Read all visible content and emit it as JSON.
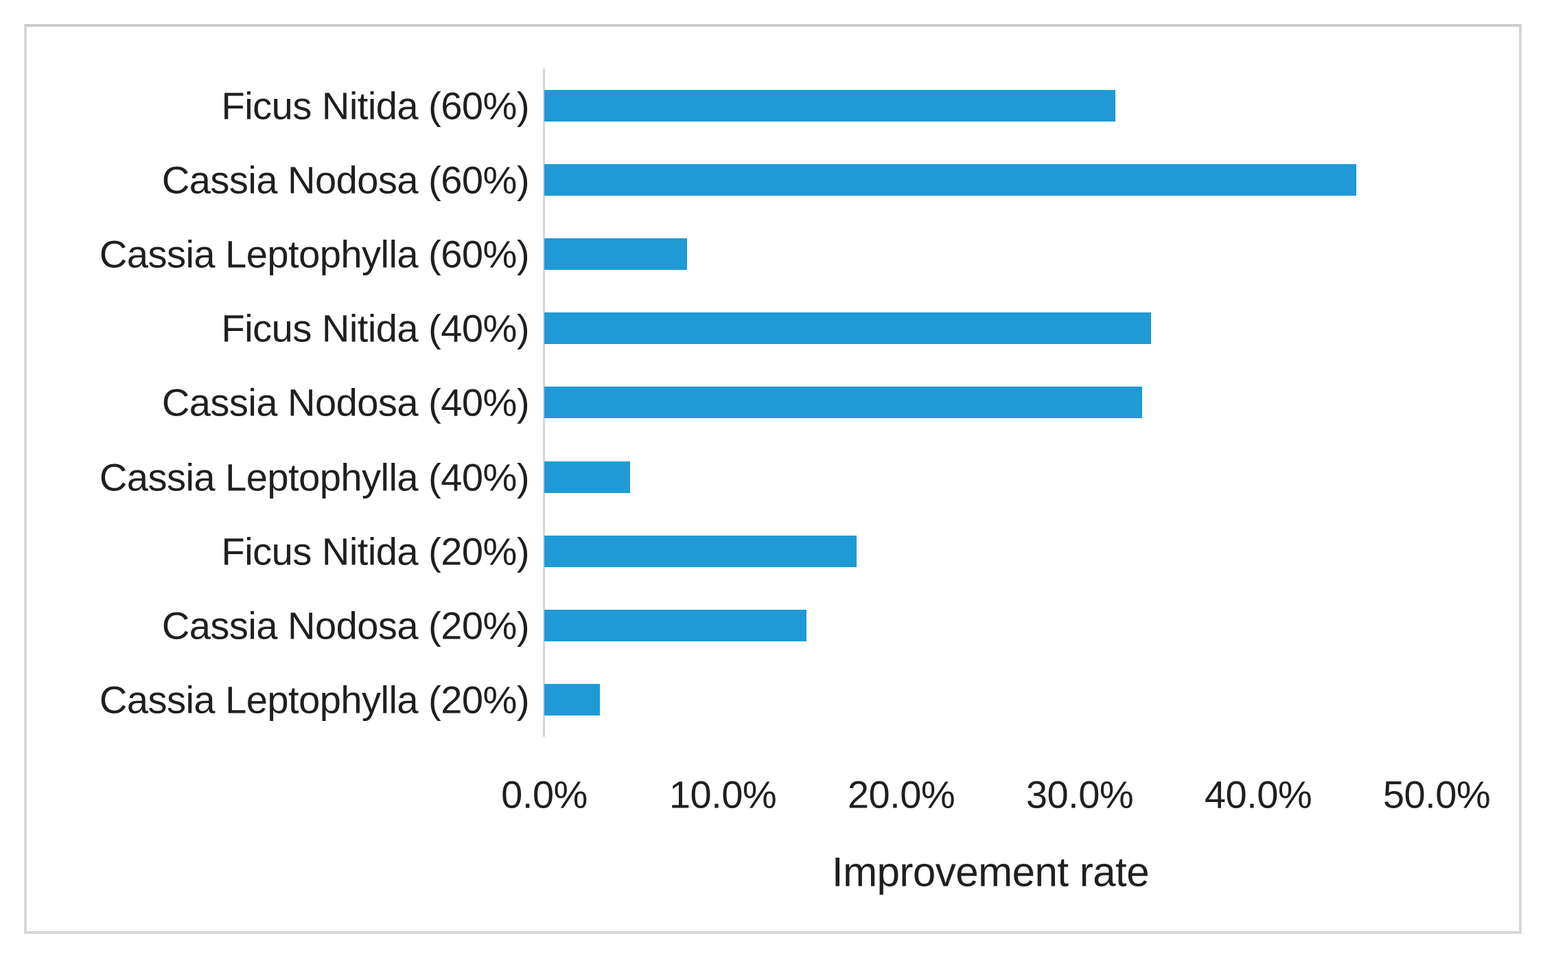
{
  "chart_data": {
    "type": "bar",
    "orientation": "horizontal",
    "title": "",
    "xlabel": "Improvement rate",
    "ylabel": "",
    "categories": [
      "Ficus Nitida (60%)",
      "Cassia Nodosa (60%)",
      "Cassia Leptophylla (60%)",
      "Ficus Nitida (40%)",
      "Cassia Nodosa (40%)",
      "Cassia Leptophylla (40%)",
      "Ficus Nitida (20%)",
      "Cassia Nodosa (20%)",
      "Cassia Leptophylla (20%)"
    ],
    "values": [
      32.0,
      45.5,
      8.0,
      34.0,
      33.5,
      4.8,
      17.5,
      14.7,
      3.1
    ],
    "value_unit": "%",
    "x_ticks": [
      "0.0%",
      "10.0%",
      "20.0%",
      "30.0%",
      "40.0%",
      "50.0%"
    ],
    "x_tick_values": [
      0,
      10,
      20,
      30,
      40,
      50
    ],
    "xlim": [
      0,
      50
    ],
    "grid": false,
    "legend": null,
    "bar_color": "#1f9ad6",
    "axis_line_color": "#d4d4d4",
    "text_color": "#1f1f1f",
    "frame_border_color": "#d7d7d7"
  }
}
